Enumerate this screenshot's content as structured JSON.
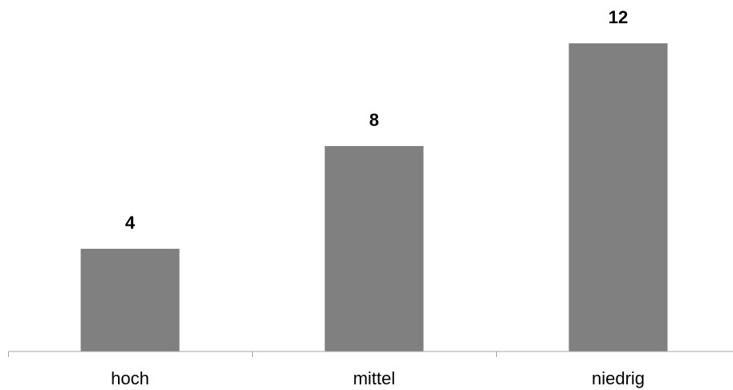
{
  "chart_data": {
    "type": "bar",
    "categories": [
      "hoch",
      "mittel",
      "niedrig"
    ],
    "values": [
      4,
      8,
      12
    ],
    "data_labels": [
      "4",
      "8",
      "12"
    ],
    "title": "",
    "xlabel": "",
    "ylabel": "",
    "ylim": [
      0,
      13
    ],
    "grid": false,
    "legend": "none",
    "colors": {
      "bar": "#808080",
      "axis": "#a6a6a6",
      "text": "#000000"
    }
  }
}
